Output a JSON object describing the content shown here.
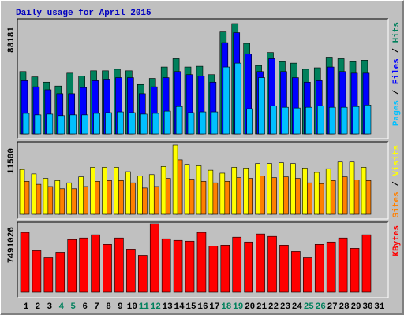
{
  "chart_data": {
    "type": "bar",
    "title": "Daily usage for April 2015",
    "title_color": "#0000c0",
    "background": "#c0c0c0",
    "categories": [
      "1",
      "2",
      "3",
      "4",
      "5",
      "6",
      "7",
      "8",
      "9",
      "10",
      "11",
      "12",
      "13",
      "14",
      "15",
      "16",
      "17",
      "18",
      "19",
      "20",
      "21",
      "22",
      "23",
      "24",
      "25",
      "26",
      "27",
      "28",
      "29",
      "30",
      "31"
    ],
    "weekend_categories": [
      "4",
      "5",
      "11",
      "12",
      "18",
      "19",
      "25",
      "26"
    ],
    "weekend_color": "#00805c",
    "legend_separator": " / ",
    "panels": [
      {
        "ylim": [
          0,
          88181
        ],
        "yticks": [
          88181
        ],
        "series": [
          {
            "name": "Pages",
            "color": "#00c0ff",
            "values": [
              16400,
              15200,
              15800,
              14600,
              15200,
              15200,
              16400,
              17000,
              17600,
              17000,
              15800,
              16400,
              18200,
              21900,
              17000,
              17600,
              17600,
              53500,
              56600,
              20100,
              45000,
              22500,
              21300,
              20700,
              21300,
              22500,
              21300,
              21300,
              21900,
              23100,
              null
            ]
          },
          {
            "name": "Files",
            "color": "#0000ff",
            "values": [
              42600,
              37700,
              35300,
              32200,
              32200,
              37100,
              42600,
              43800,
              45000,
              45000,
              32200,
              37700,
              45000,
              49900,
              47400,
              46200,
              41400,
              73000,
              80900,
              63900,
              49900,
              60200,
              49900,
              45000,
              41400,
              42600,
              53500,
              49900,
              48600,
              48600,
              null
            ]
          },
          {
            "name": "Hits",
            "color": "#00805c",
            "values": [
              49900,
              45600,
              41400,
              38300,
              48600,
              46200,
              50500,
              50500,
              51700,
              50500,
              39500,
              44400,
              53500,
              60200,
              53500,
              54100,
              47400,
              81500,
              88181,
              72400,
              54700,
              65100,
              57800,
              56600,
              51700,
              52900,
              60800,
              60200,
              57800,
              59000,
              null
            ]
          }
        ]
      },
      {
        "ylim": [
          0,
          11500
        ],
        "yticks": [
          11500
        ],
        "series": [
          {
            "name": "Sites",
            "color": "#ff8000",
            "values": [
              5440,
              4950,
              4580,
              4210,
              4210,
              4580,
              5440,
              5570,
              5570,
              5200,
              4330,
              4580,
              5940,
              9030,
              5810,
              5440,
              5200,
              5440,
              6060,
              5940,
              6310,
              6060,
              6190,
              5940,
              5200,
              5070,
              5570,
              6190,
              5690,
              5570,
              null
            ]
          },
          {
            "name": "Visits",
            "color": "#ffff00",
            "values": [
              7420,
              6680,
              5940,
              5570,
              5200,
              6190,
              7790,
              7790,
              7790,
              7050,
              6310,
              6560,
              7920,
              11500,
              8290,
              8040,
              7300,
              6800,
              7790,
              7670,
              8410,
              8410,
              8540,
              8410,
              7670,
              6930,
              7550,
              8660,
              8660,
              7790,
              null
            ]
          }
        ]
      },
      {
        "ylim": [
          0,
          7491026
        ],
        "yticks": [
          7491026
        ],
        "series": [
          {
            "name": "KBytes",
            "color": "#ff0000",
            "values": [
              6533000,
              4529000,
              3833000,
              4355000,
              5749000,
              5923000,
              6272000,
              5226000,
              5923000,
              4704000,
              4007000,
              7491026,
              5836000,
              5662000,
              5575000,
              6533000,
              5052000,
              5139000,
              6010000,
              5488000,
              6359000,
              6097000,
              5139000,
              4442000,
              3833000,
              5226000,
              5488000,
              5923000,
              4791000,
              6272000,
              null
            ]
          }
        ]
      }
    ]
  }
}
